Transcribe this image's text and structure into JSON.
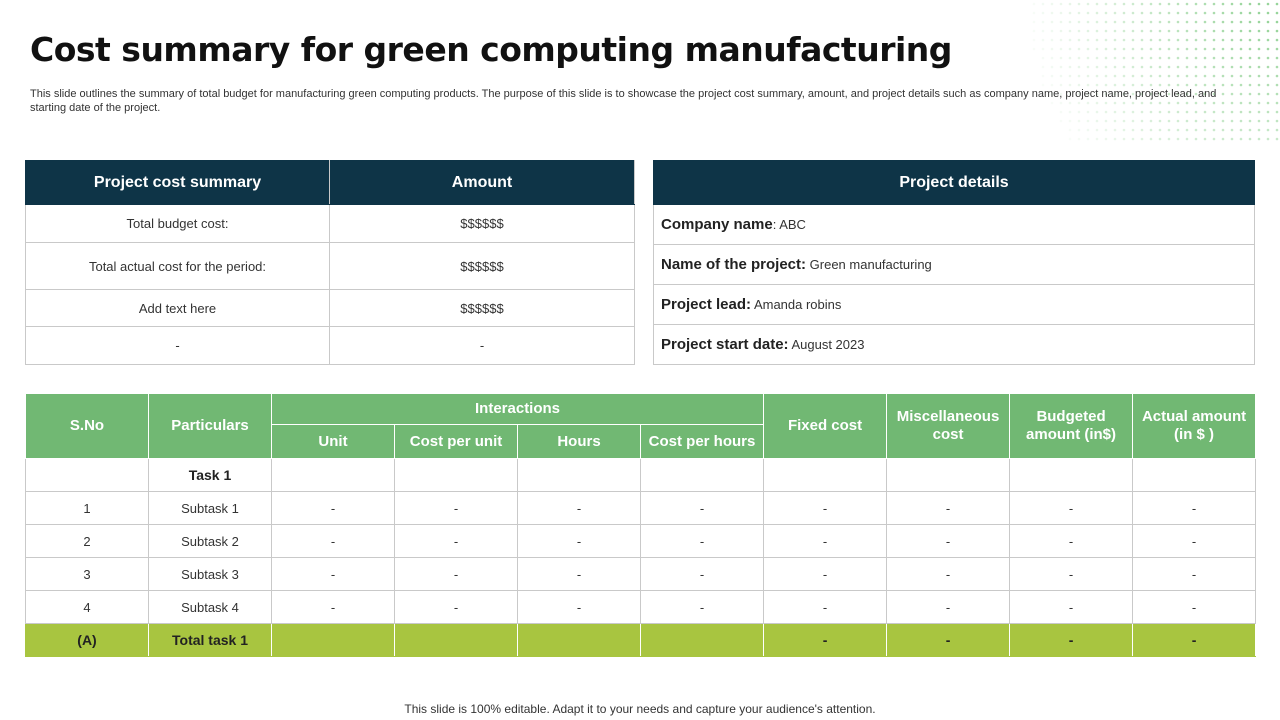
{
  "slide": {
    "title": "Cost summary for green computing manufacturing",
    "subtitle": "This slide outlines the summary of total budget for manufacturing green computing products. The purpose of this slide is to showcase the project cost summary, amount, and project details such as company name, project name, project lead, and starting date of the project.",
    "footer": "This slide is 100% editable. Adapt it to your needs and capture your audience's attention."
  },
  "cost_summary": {
    "headers": [
      "Project cost summary",
      "Amount"
    ],
    "rows": [
      {
        "label": "Total budget cost:",
        "amount": "$$$$$$"
      },
      {
        "label": "Total actual cost for the period:",
        "amount": "$$$$$$"
      },
      {
        "label": "Add text here",
        "amount": "$$$$$$"
      },
      {
        "label": "-",
        "amount": "-"
      }
    ]
  },
  "project_details": {
    "header": "Project details",
    "items": [
      {
        "key": "Company name",
        "sep": ": ",
        "value": "ABC"
      },
      {
        "key": "Name of the project:",
        "sep": " ",
        "value": "Green manufacturing"
      },
      {
        "key": "Project lead:",
        "sep": " ",
        "value": "Amanda robins"
      },
      {
        "key": "Project start date:",
        "sep": " ",
        "value": "August 2023"
      }
    ]
  },
  "main_table": {
    "headers": {
      "sno": "S.No",
      "particulars": "Particulars",
      "interactions": "Interactions",
      "unit": "Unit",
      "cost_per_unit": "Cost per unit",
      "hours": "Hours",
      "cost_per_hours": "Cost per hours",
      "fixed_cost": "Fixed cost",
      "misc_cost": "Miscellaneous cost",
      "budgeted_amount": "Budgeted amount (in$)",
      "actual_amount": "Actual amount (in $ )"
    },
    "task_label": "Task 1",
    "rows": [
      {
        "sno": "1",
        "particular": "Subtask 1",
        "values": [
          "-",
          "-",
          "-",
          "-",
          "-",
          "-",
          "-",
          "-"
        ]
      },
      {
        "sno": "2",
        "particular": "Subtask 2",
        "values": [
          "-",
          "-",
          "-",
          "-",
          "-",
          "-",
          "-",
          "-"
        ]
      },
      {
        "sno": "3",
        "particular": "Subtask 3",
        "values": [
          "-",
          "-",
          "-",
          "-",
          "-",
          "-",
          "-",
          "-"
        ]
      },
      {
        "sno": "4",
        "particular": "Subtask 4",
        "values": [
          "-",
          "-",
          "-",
          "-",
          "-",
          "-",
          "-",
          "-"
        ]
      }
    ],
    "total": {
      "sno": "(A)",
      "particular": "Total task 1",
      "values": [
        "",
        "",
        "",
        "",
        "-",
        "-",
        "-",
        "-"
      ]
    }
  },
  "colors": {
    "dark_header": "#0e3447",
    "green_header": "#71b873",
    "total_row": "#a8c540",
    "dot_pattern": "#8ccf8f"
  }
}
